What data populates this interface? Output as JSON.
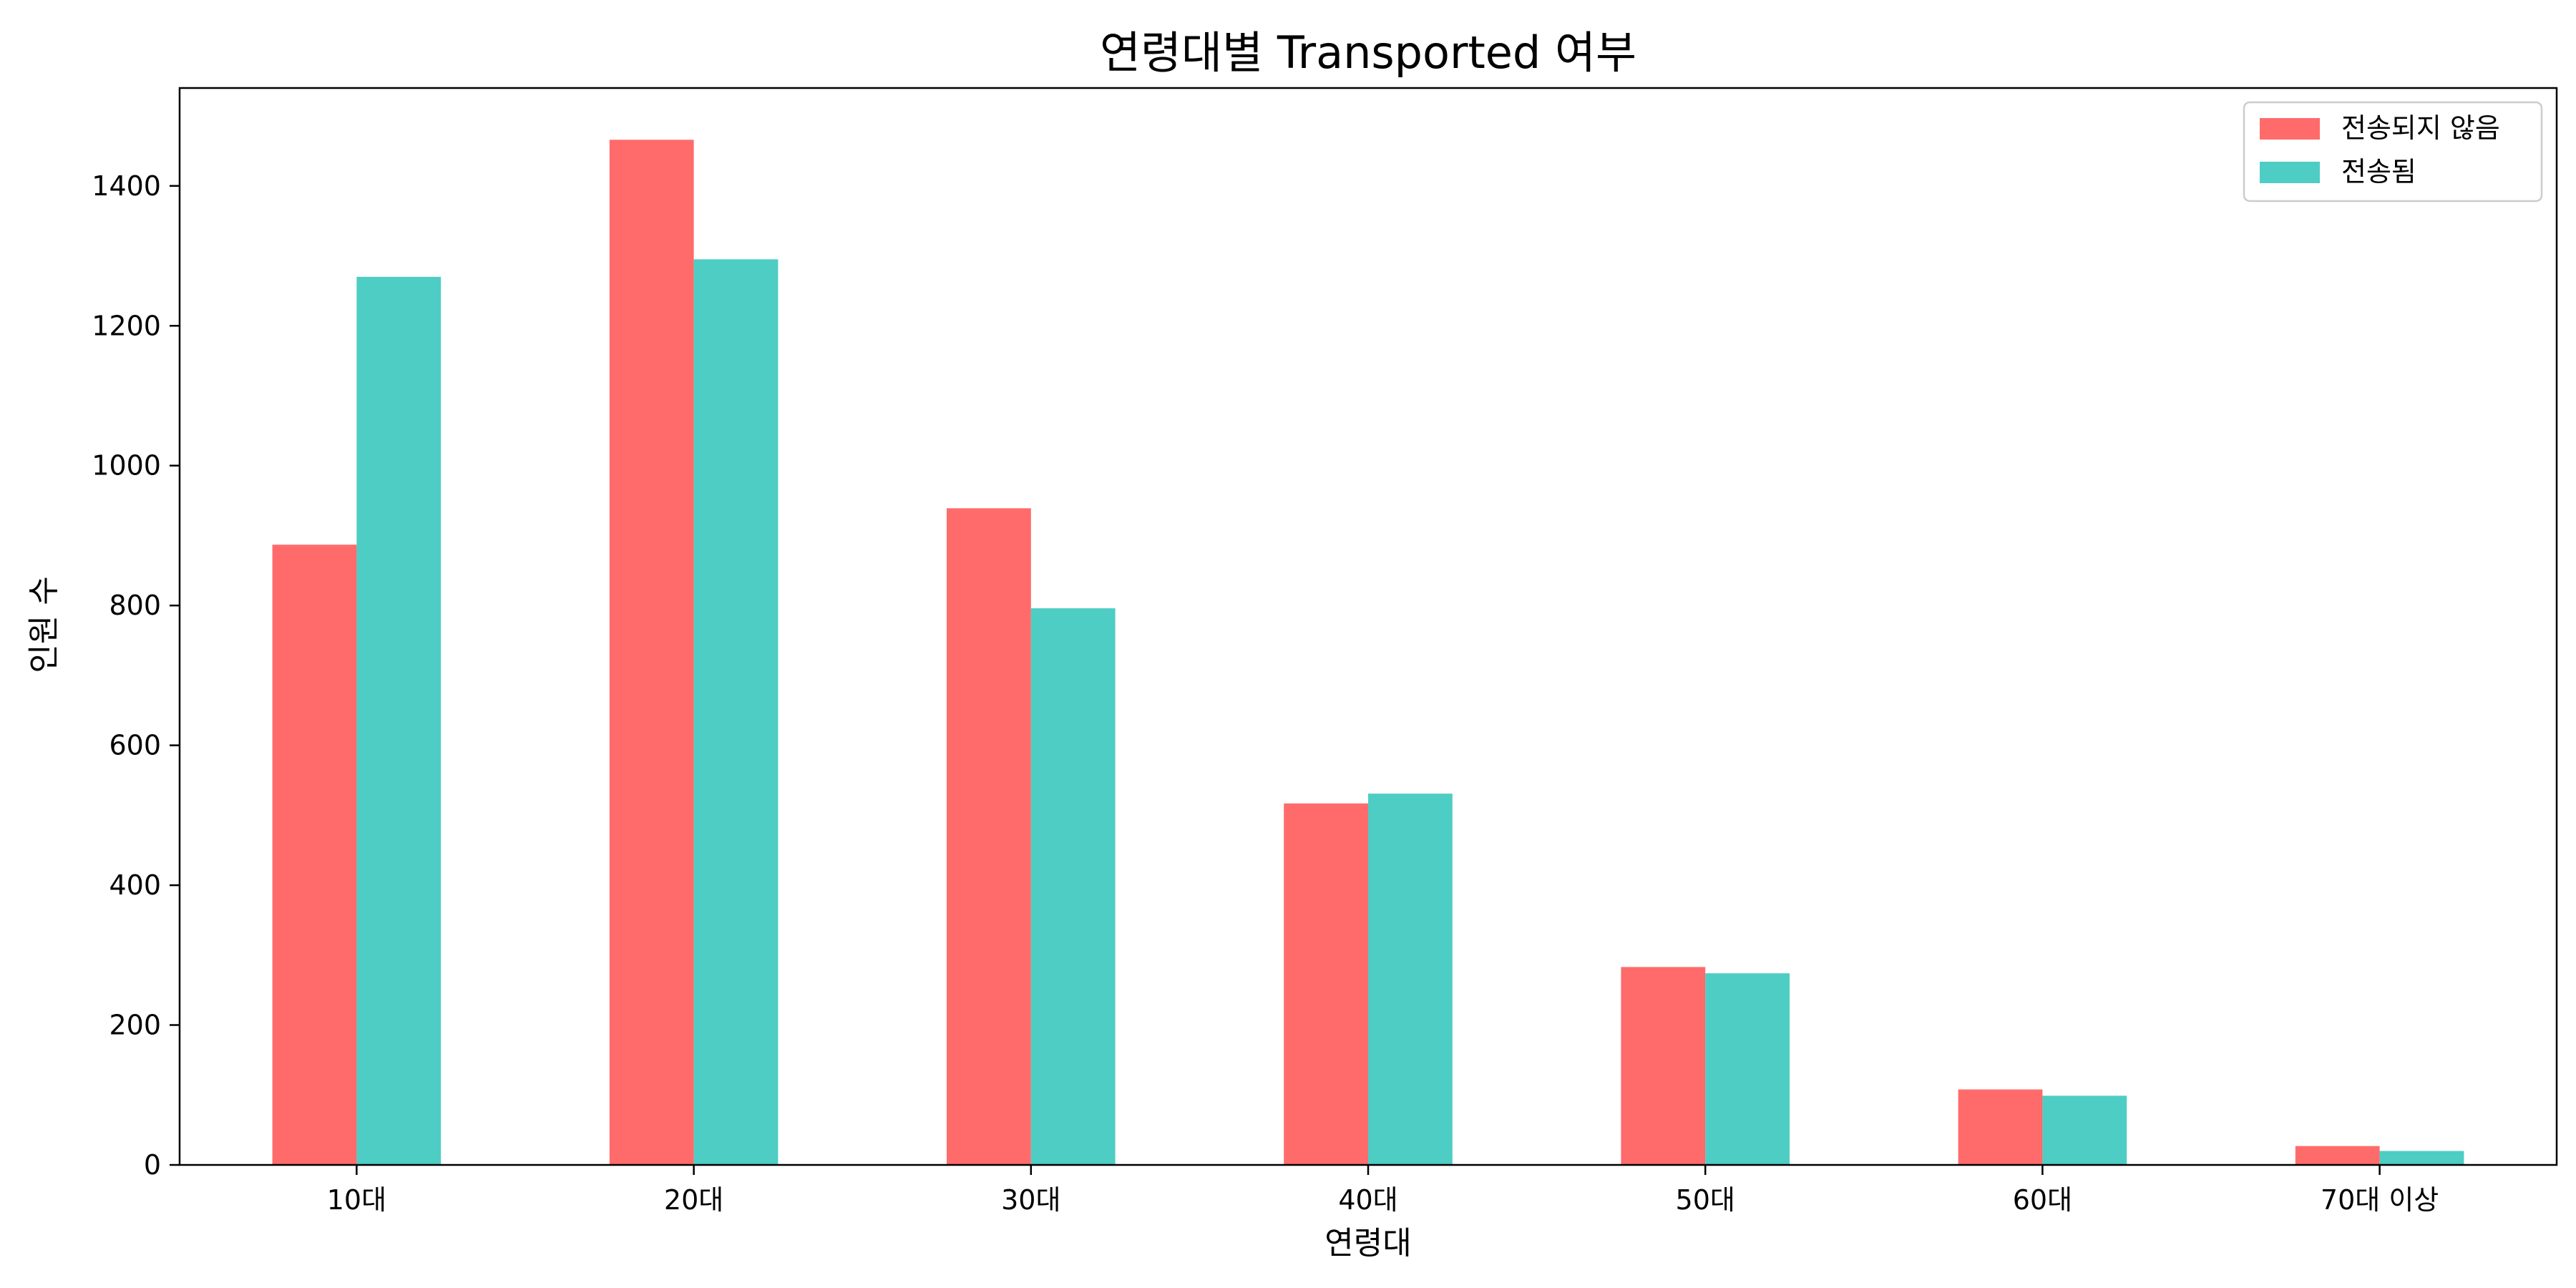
{
  "chart_data": {
    "type": "bar",
    "title": "연령대별 Transported 여부",
    "xlabel": "연령대",
    "ylabel": "인원 수",
    "categories": [
      "10대",
      "20대",
      "30대",
      "40대",
      "50대",
      "60대",
      "70대 이상"
    ],
    "series": [
      {
        "name": "전송되지 않음",
        "color": "#ff6b6b",
        "values": [
          887,
          1466,
          939,
          517,
          283,
          108,
          27
        ]
      },
      {
        "name": "전송됨",
        "color": "#4ecdc4",
        "values": [
          1270,
          1295,
          796,
          531,
          274,
          99,
          20
        ]
      }
    ],
    "ylim": [
      0,
      1540
    ],
    "yticks": [
      0,
      200,
      400,
      600,
      800,
      1000,
      1200,
      1400
    ],
    "legend": "top-right",
    "grid": false
  }
}
